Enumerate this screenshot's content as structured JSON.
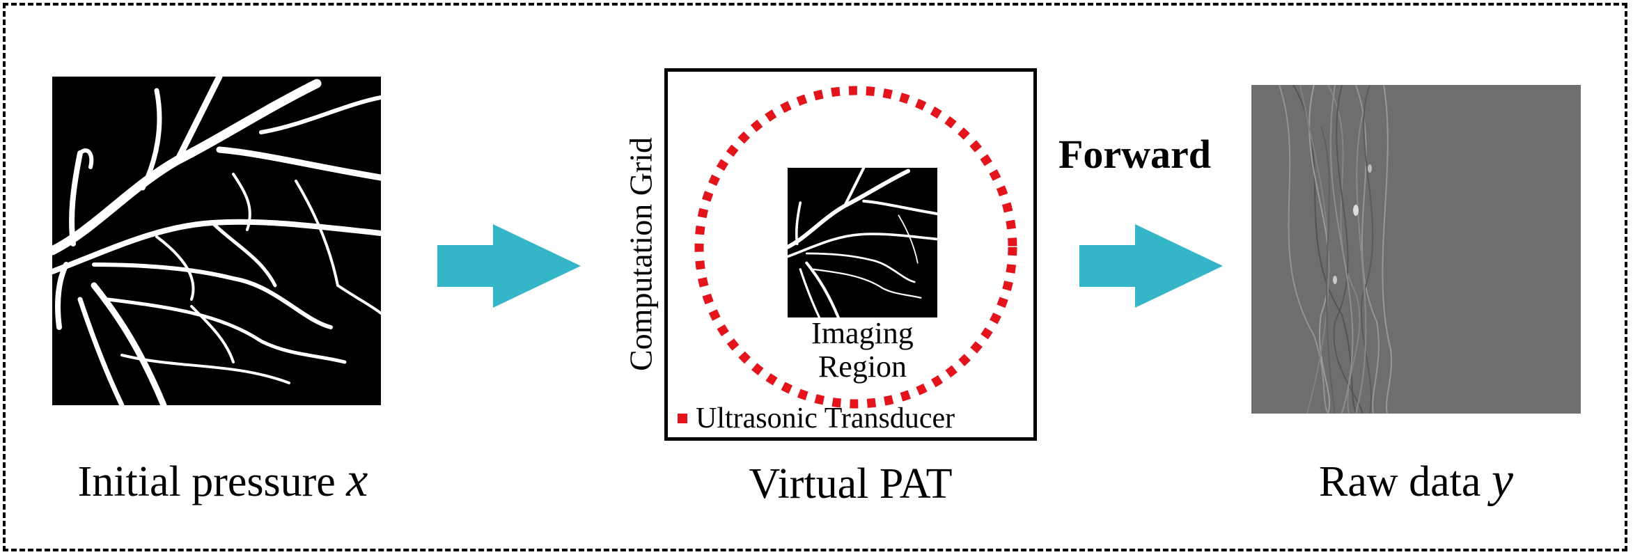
{
  "captions": {
    "left_prefix": "Initial  pressure",
    "left_symbol": "x",
    "middle": "Virtual PAT",
    "right_prefix": "Raw data",
    "right_symbol": "y"
  },
  "virtual_pat": {
    "grid_label": "Computation Grid",
    "region_label_line1": "Imaging",
    "region_label_line2": "Region",
    "legend_label": "Ultrasonic Transducer",
    "transducer_color": "#e3141b"
  },
  "forward_label": "Forward",
  "arrow_color": "#35b5c8",
  "raw_data_background": "#6e6e6e"
}
